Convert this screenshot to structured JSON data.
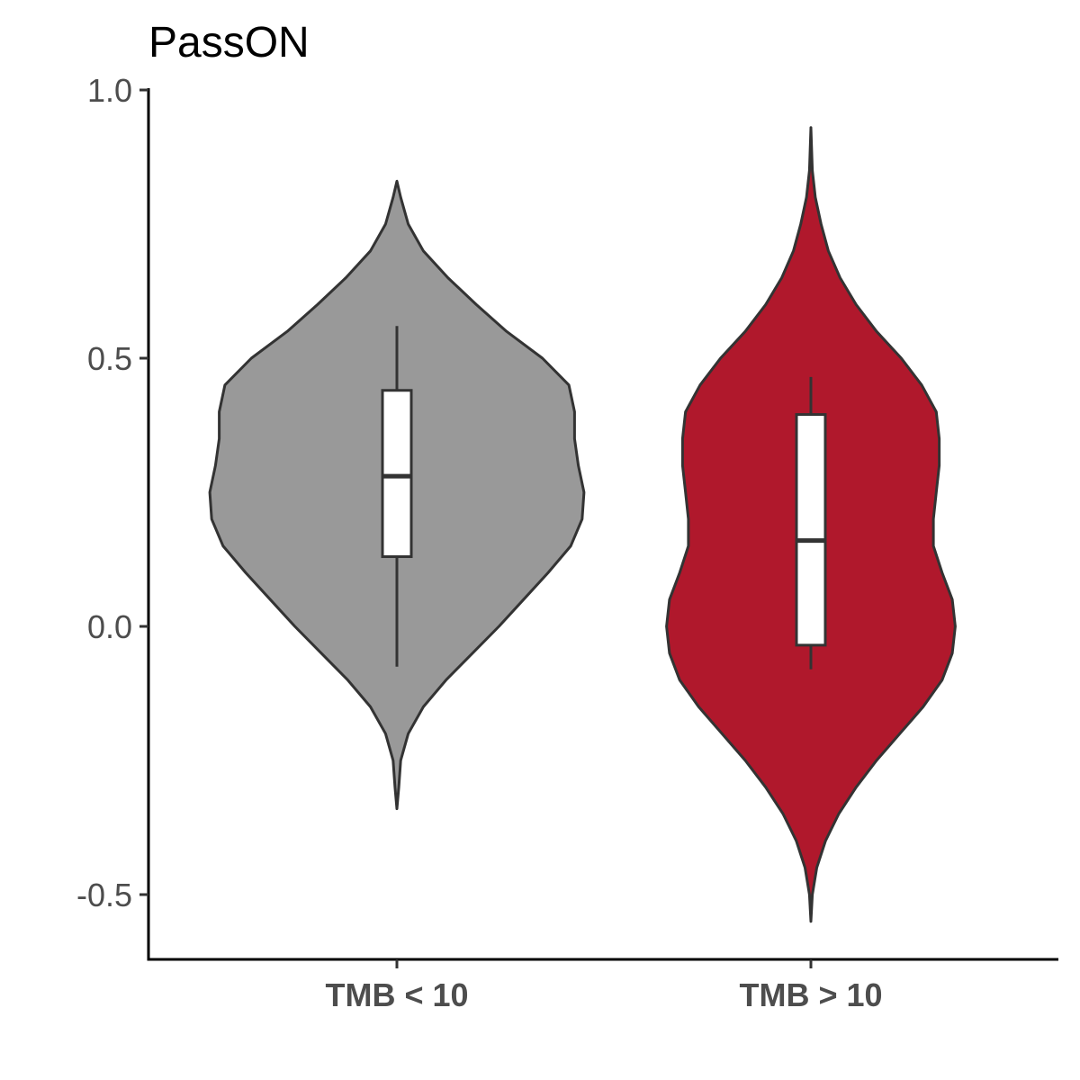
{
  "chart_data": {
    "type": "violin",
    "title": "PassON",
    "xlabel": "",
    "ylabel": "",
    "ylim": [
      -0.62,
      1.0
    ],
    "y_ticks": [
      -0.5,
      0.0,
      0.5,
      1.0
    ],
    "y_tick_labels": [
      "-0.5",
      "0.0",
      "0.5",
      "1.0"
    ],
    "grid": false,
    "legend": "none",
    "categories": [
      "TMB < 10",
      "TMB > 10"
    ],
    "series": [
      {
        "category": "TMB < 10",
        "color": "#999999",
        "min": -0.34,
        "max": 0.83,
        "box": {
          "whisker_low": -0.075,
          "q1": 0.13,
          "median": 0.28,
          "q3": 0.44,
          "whisker_high": 0.56
        },
        "density_profile": [
          [
            -0.34,
            0.0
          ],
          [
            -0.3,
            0.01
          ],
          [
            -0.25,
            0.02
          ],
          [
            -0.2,
            0.06
          ],
          [
            -0.15,
            0.14
          ],
          [
            -0.1,
            0.26
          ],
          [
            -0.05,
            0.4
          ],
          [
            0.0,
            0.54
          ],
          [
            0.05,
            0.67
          ],
          [
            0.1,
            0.8
          ],
          [
            0.15,
            0.92
          ],
          [
            0.2,
            0.98
          ],
          [
            0.25,
            0.99
          ],
          [
            0.3,
            0.96
          ],
          [
            0.35,
            0.94
          ],
          [
            0.4,
            0.94
          ],
          [
            0.45,
            0.91
          ],
          [
            0.5,
            0.77
          ],
          [
            0.55,
            0.58
          ],
          [
            0.6,
            0.42
          ],
          [
            0.65,
            0.27
          ],
          [
            0.7,
            0.14
          ],
          [
            0.75,
            0.06
          ],
          [
            0.8,
            0.02
          ],
          [
            0.83,
            0.0
          ]
        ]
      },
      {
        "category": "TMB > 10",
        "color": "#B0182C",
        "min": -0.55,
        "max": 0.93,
        "box": {
          "whisker_low": -0.08,
          "q1": -0.035,
          "median": 0.16,
          "q3": 0.395,
          "whisker_high": 0.465
        },
        "density_profile": [
          [
            -0.55,
            0.0
          ],
          [
            -0.5,
            0.01
          ],
          [
            -0.45,
            0.04
          ],
          [
            -0.4,
            0.1
          ],
          [
            -0.35,
            0.19
          ],
          [
            -0.3,
            0.31
          ],
          [
            -0.25,
            0.45
          ],
          [
            -0.2,
            0.61
          ],
          [
            -0.15,
            0.77
          ],
          [
            -0.1,
            0.9
          ],
          [
            -0.05,
            0.97
          ],
          [
            0.0,
            0.99
          ],
          [
            0.05,
            0.97
          ],
          [
            0.1,
            0.9
          ],
          [
            0.15,
            0.84
          ],
          [
            0.2,
            0.84
          ],
          [
            0.25,
            0.86
          ],
          [
            0.3,
            0.88
          ],
          [
            0.35,
            0.88
          ],
          [
            0.4,
            0.86
          ],
          [
            0.45,
            0.76
          ],
          [
            0.5,
            0.62
          ],
          [
            0.55,
            0.45
          ],
          [
            0.6,
            0.31
          ],
          [
            0.65,
            0.2
          ],
          [
            0.7,
            0.12
          ],
          [
            0.75,
            0.07
          ],
          [
            0.8,
            0.03
          ],
          [
            0.85,
            0.01
          ],
          [
            0.93,
            0.0
          ]
        ]
      }
    ]
  }
}
